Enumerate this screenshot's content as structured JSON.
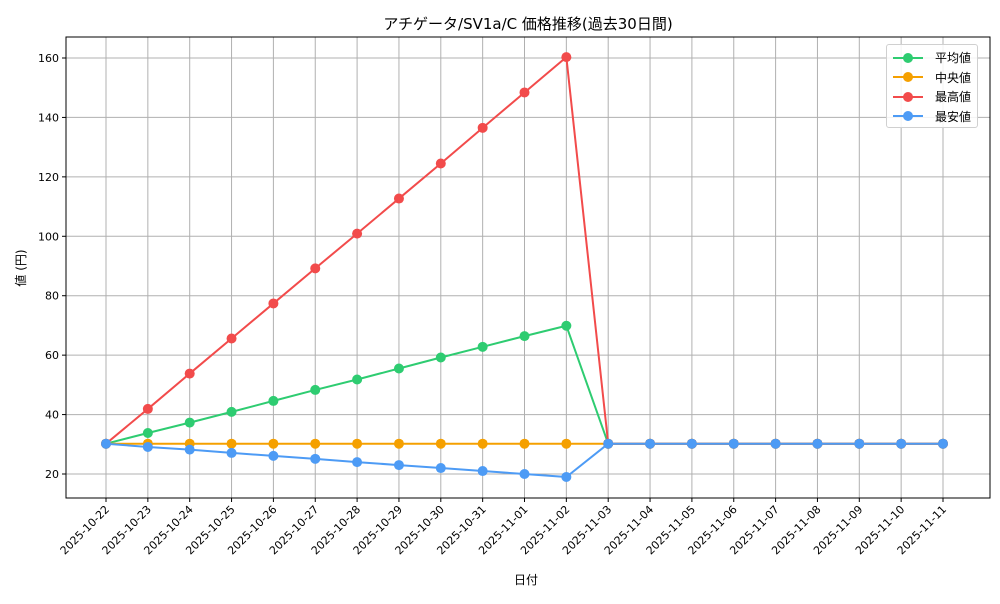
{
  "chart_data": {
    "type": "line",
    "title": "アチゲータ/SV1a/C 価格推移(過去30日間)",
    "xlabel": "日付",
    "ylabel": "値 (円)",
    "ylim": [
      12,
      167
    ],
    "yticks": [
      20,
      40,
      60,
      80,
      100,
      120,
      140,
      160
    ],
    "grid": true,
    "legend_position": "upper right",
    "x": [
      "2025-10-22",
      "2025-10-23",
      "2025-10-24",
      "2025-10-25",
      "2025-10-26",
      "2025-10-27",
      "2025-10-28",
      "2025-10-29",
      "2025-10-30",
      "2025-10-31",
      "2025-11-01",
      "2025-11-02",
      "2025-11-03",
      "2025-11-04",
      "2025-11-05",
      "2025-11-06",
      "2025-11-07",
      "2025-11-08",
      "2025-11-09",
      "2025-11-10",
      "2025-11-11"
    ],
    "series": [
      {
        "name": "平均値",
        "color": "#2ecc71",
        "values": [
          30.2,
          33.8,
          37.3,
          40.9,
          44.6,
          48.3,
          51.8,
          55.5,
          59.2,
          62.8,
          66.4,
          69.9,
          30.2,
          30.2,
          30.2,
          30.2,
          30.2,
          30.2,
          30.2,
          30.2,
          30.2
        ]
      },
      {
        "name": "中央値",
        "color": "#f5a000",
        "values": [
          30.2,
          30.2,
          30.2,
          30.2,
          30.2,
          30.2,
          30.2,
          30.2,
          30.2,
          30.2,
          30.2,
          30.2,
          30.2,
          30.2,
          30.2,
          30.2,
          30.2,
          30.2,
          30.2,
          30.2,
          30.2
        ]
      },
      {
        "name": "最高値",
        "color": "#f24b4b",
        "values": [
          30.2,
          41.9,
          53.8,
          65.6,
          77.4,
          89.2,
          100.9,
          112.7,
          124.5,
          136.5,
          148.4,
          160.3,
          30.2,
          30.2,
          30.2,
          30.2,
          30.2,
          30.2,
          30.2,
          30.2,
          30.2
        ]
      },
      {
        "name": "最安値",
        "color": "#4d9bf5",
        "values": [
          30.2,
          29.1,
          28.2,
          27.1,
          26.1,
          25.1,
          24.0,
          23.0,
          22.0,
          21.0,
          20.0,
          19.0,
          30.2,
          30.2,
          30.2,
          30.2,
          30.2,
          30.2,
          30.2,
          30.2,
          30.2
        ]
      }
    ]
  }
}
